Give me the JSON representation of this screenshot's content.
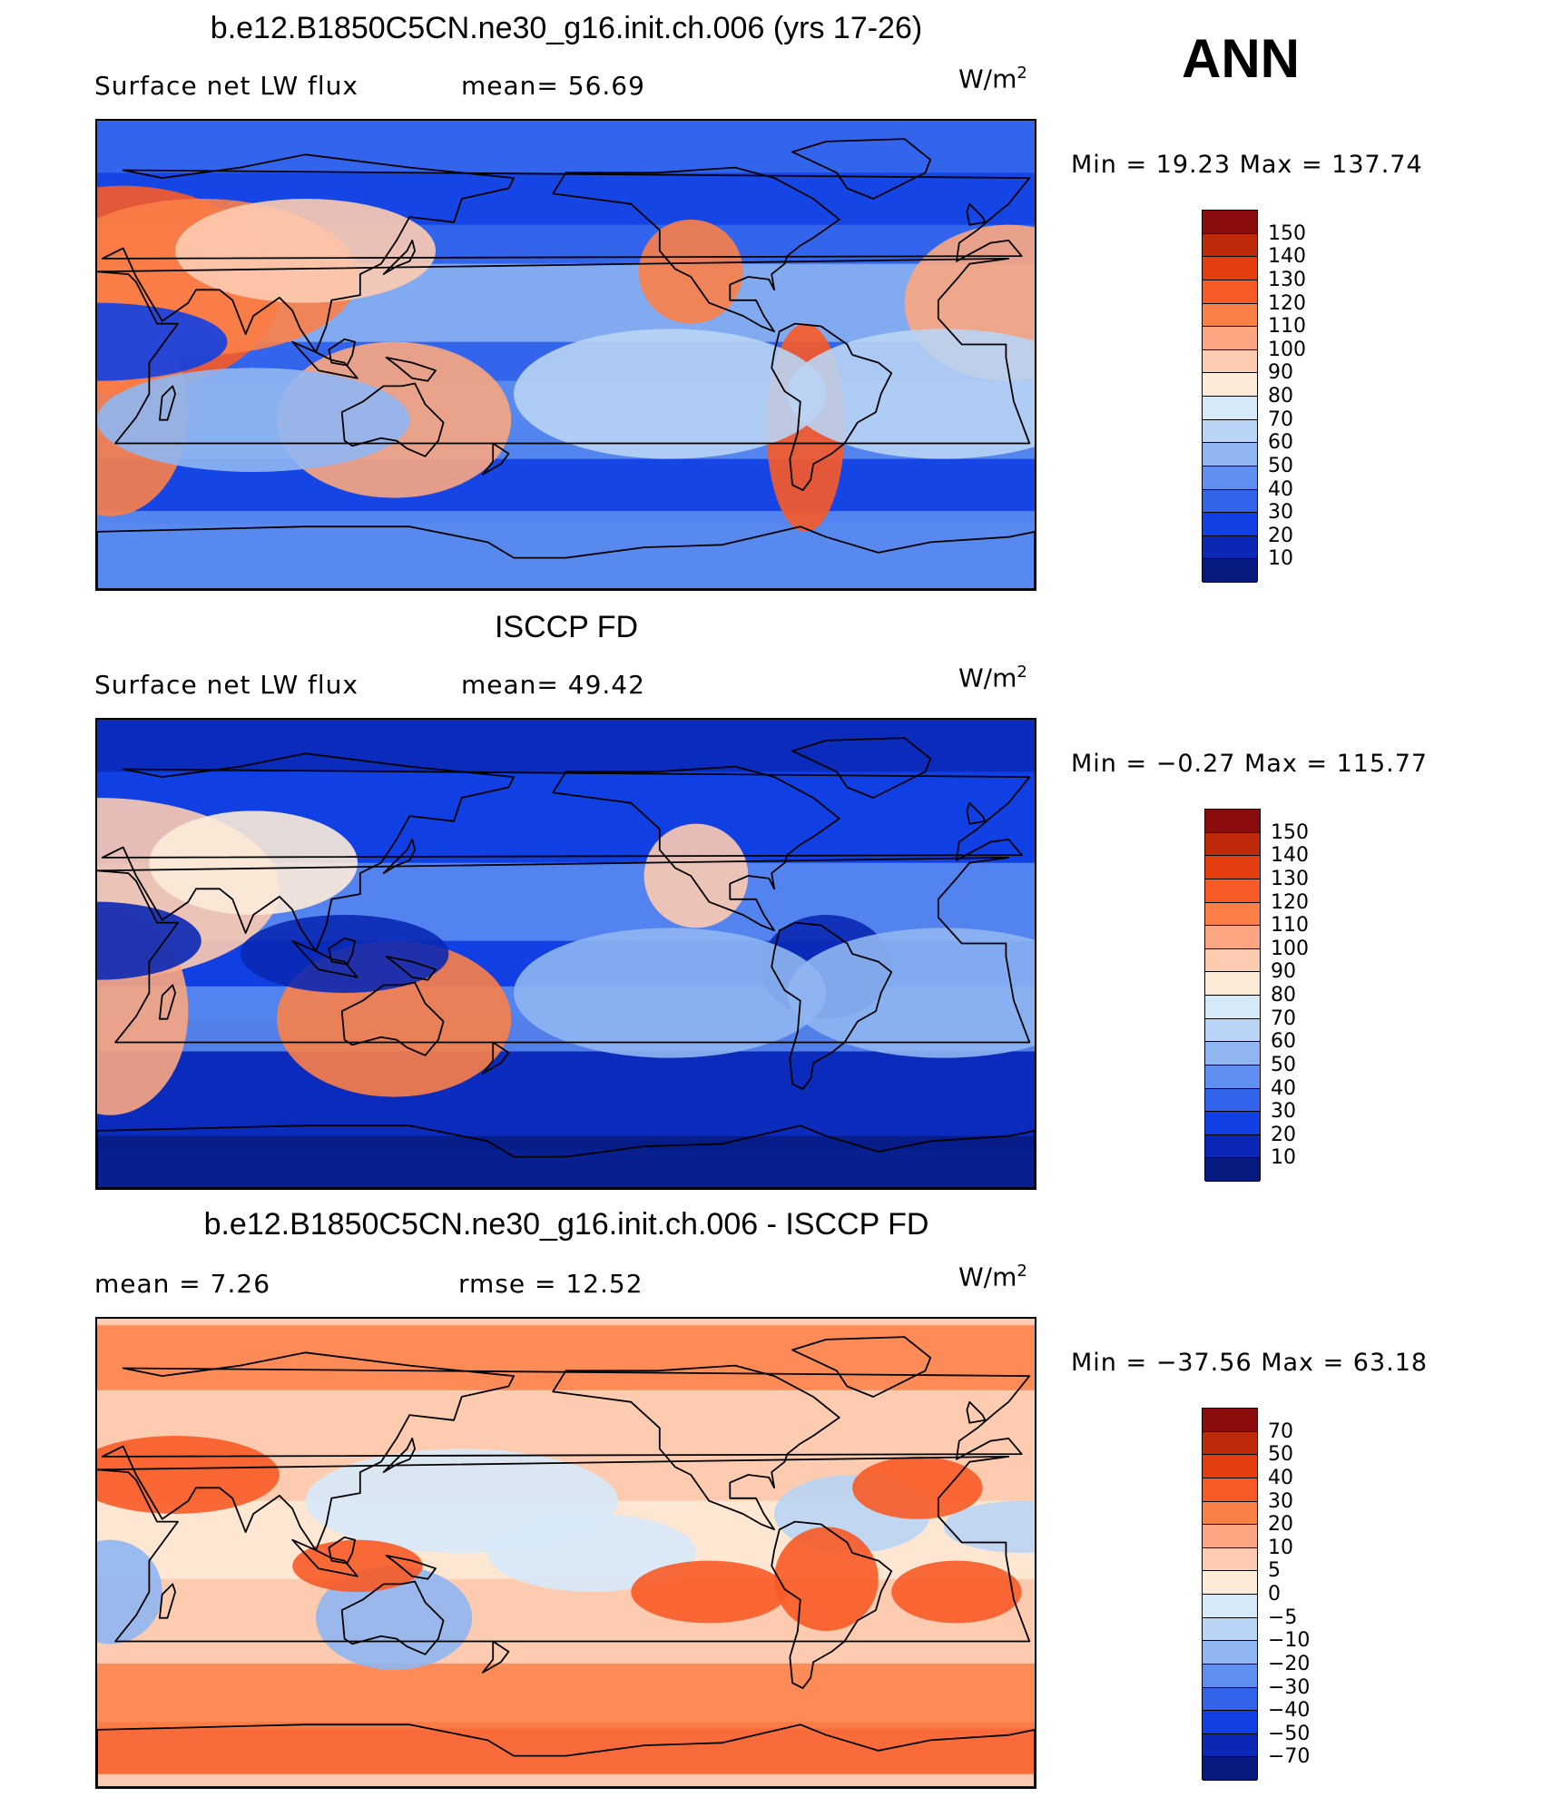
{
  "season": "ANN",
  "units_base": "W/m",
  "units_exp": "2",
  "panels": [
    {
      "title": "b.e12.B1850C5CN.ne30_g16.init.ch.006 (yrs 17-26)",
      "left_text": "Surface net LW flux",
      "right_text": "mean=  56.69",
      "minmax": "Min =  19.23 Max = 137.74",
      "colorbar_labels": [
        "150",
        "140",
        "130",
        "120",
        "110",
        "100",
        "90",
        "80",
        "70",
        "60",
        "50",
        "40",
        "30",
        "20",
        "10"
      ],
      "colors": [
        "#8b0c0c",
        "#bf2a0a",
        "#e43d10",
        "#f85a26",
        "#fb8048",
        "#fba680",
        "#fdcbb0",
        "#fdebd8",
        "#d6e9f8",
        "#b9d4f4",
        "#8fb6f2",
        "#5f8ff0",
        "#3365ec",
        "#1040e3",
        "#0a28b5",
        "#061a80"
      ],
      "field": "model"
    },
    {
      "title": "ISCCP FD",
      "left_text": "Surface net LW flux",
      "right_text": "mean=  49.42",
      "minmax": "Min =  −0.27 Max = 115.77",
      "colorbar_labels": [
        "150",
        "140",
        "130",
        "120",
        "110",
        "100",
        "90",
        "80",
        "70",
        "60",
        "50",
        "40",
        "30",
        "20",
        "10"
      ],
      "colors": [
        "#8b0c0c",
        "#bf2a0a",
        "#e43d10",
        "#f85a26",
        "#fb8048",
        "#fba680",
        "#fdcbb0",
        "#fdebd8",
        "#d6e9f8",
        "#b9d4f4",
        "#8fb6f2",
        "#5f8ff0",
        "#3365ec",
        "#1040e3",
        "#0a28b5",
        "#061a80"
      ],
      "field": "obs"
    },
    {
      "title": "b.e12.B1850C5CN.ne30_g16.init.ch.006 - ISCCP FD",
      "left_text": "mean =    7.26",
      "right_text": "rmse =   12.52",
      "minmax": "Min = −37.56 Max =   63.18",
      "colorbar_labels": [
        "70",
        "50",
        "40",
        "30",
        "20",
        "10",
        "5",
        "0",
        "−5",
        "−10",
        "−20",
        "−30",
        "−40",
        "−50",
        "−70"
      ],
      "colors": [
        "#8b0c0c",
        "#bf2a0a",
        "#e43d10",
        "#f85a26",
        "#fb8048",
        "#fba680",
        "#fdcbb0",
        "#fdebd8",
        "#d6e9f8",
        "#b9d4f4",
        "#8fb6f2",
        "#5f8ff0",
        "#3365ec",
        "#1040e3",
        "#0a28b5",
        "#061a80"
      ],
      "field": "diff"
    }
  ]
}
